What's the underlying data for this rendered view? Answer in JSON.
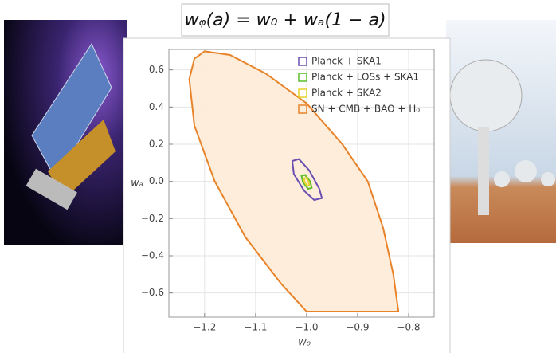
{
  "chart_data": {
    "type": "contour",
    "title": "wᵩ(a) = w₀ + wₐ(1 − a)",
    "x_label": "w₀",
    "y_label": "wₐ",
    "xlim": [
      -1.27,
      -0.75
    ],
    "ylim": [
      -0.73,
      0.71
    ],
    "xticks": [
      {
        "value": -1.2,
        "label": "−1.2"
      },
      {
        "value": -1.1,
        "label": "−1.1"
      },
      {
        "value": -1.0,
        "label": "−1.0"
      },
      {
        "value": -0.9,
        "label": "−0.9"
      },
      {
        "value": -0.8,
        "label": "−0.8"
      }
    ],
    "yticks": [
      {
        "value": -0.6,
        "label": "−0.6"
      },
      {
        "value": -0.4,
        "label": "−0.4"
      },
      {
        "value": -0.2,
        "label": "−0.2"
      },
      {
        "value": 0,
        "label": "0.0"
      },
      0.2,
      0.4,
      0.6
    ],
    "grid": true,
    "legend": "top-right",
    "series": [
      {
        "name": "SN + CMB + BAO + H₀",
        "color": "#e8832a",
        "fill": "#fdebd6",
        "x": [
          -1.2,
          -1.15,
          -1.08,
          -1.0,
          -0.93,
          -0.88,
          -0.85,
          -0.83,
          -0.82,
          -1.0,
          -1.05,
          -1.12,
          -1.18,
          -1.22,
          -1.23,
          -1.22,
          -1.2
        ],
        "y": [
          0.7,
          0.68,
          0.58,
          0.42,
          0.2,
          0.0,
          -0.25,
          -0.5,
          -0.7,
          -0.7,
          -0.55,
          -0.3,
          0.0,
          0.3,
          0.55,
          0.66,
          0.7
        ]
      },
      {
        "name": "Planck + SKA1",
        "color": "#6a4fb3",
        "fill": "none",
        "x": [
          -1.015,
          -0.995,
          -0.975,
          -0.97,
          -0.985,
          -1.005,
          -1.025,
          -1.028,
          -1.015
        ],
        "y": [
          0.12,
          0.06,
          -0.04,
          -0.09,
          -0.1,
          -0.05,
          0.04,
          0.11,
          0.12
        ]
      },
      {
        "name": "Planck + LOSs + SKA1",
        "color": "#5cbf2a",
        "fill": "none",
        "x": [
          -1.003,
          -0.993,
          -0.99,
          -0.997,
          -1.007,
          -1.01,
          -1.003
        ],
        "y": [
          0.035,
          0.0,
          -0.035,
          -0.04,
          -0.005,
          0.03,
          0.035
        ]
      },
      {
        "name": "Planck + SKA2",
        "color": "#e6d22a",
        "fill": "none",
        "x": [
          -1.001,
          -0.996,
          -0.995,
          -0.999,
          -1.004,
          -1.005,
          -1.001
        ],
        "y": [
          0.02,
          0.0,
          -0.02,
          -0.024,
          -0.004,
          0.016,
          0.02
        ]
      }
    ]
  }
}
